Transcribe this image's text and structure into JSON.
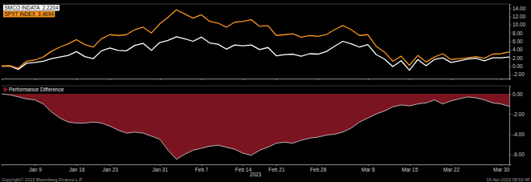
{
  "chart_data": [
    {
      "type": "line",
      "categories": [
        null,
        null,
        null,
        null,
        "Jan 9",
        null,
        null,
        null,
        null,
        "Jan 16",
        null,
        null,
        null,
        "Jan 23",
        null,
        null,
        null,
        null,
        null,
        "Jan 31",
        null,
        null,
        null,
        null,
        "Feb 7",
        null,
        null,
        null,
        null,
        "Feb 14",
        null,
        null,
        null,
        "Feb 21",
        null,
        null,
        null,
        null,
        "Feb 28",
        null,
        null,
        null,
        null,
        null,
        "Mar 8",
        null,
        null,
        null,
        null,
        "Mar 15",
        null,
        null,
        null,
        null,
        "Mar 22",
        null,
        null,
        null,
        null,
        null,
        "Mar 30",
        null
      ],
      "series": [
        {
          "name": "SMCO INDATA",
          "legend_value": 2.2204,
          "color": "#ffffff",
          "values": [
            0,
            0,
            -0.8,
            0.7,
            0.9,
            1.2,
            1.8,
            2.2,
            2.6,
            3.5,
            2.3,
            1.8,
            3.7,
            4.4,
            3.8,
            3.7,
            5.0,
            5.5,
            3.8,
            5.7,
            6.2,
            7.1,
            6.6,
            6.0,
            7.0,
            5.6,
            5.3,
            4.1,
            5.1,
            4.9,
            5.1,
            4.0,
            4.5,
            2.5,
            2.8,
            2.9,
            2.4,
            3.0,
            2.9,
            3.5,
            4.8,
            6.0,
            5.4,
            4.6,
            5.2,
            2.8,
            1.7,
            -0.1,
            1.3,
            -1.0,
            1.6,
            0.1,
            1.6,
            2.0,
            0.9,
            1.3,
            1.7,
            1.9,
            1.3,
            2.0,
            2.0,
            2.22
          ]
        },
        {
          "name": "SPXT INDEX",
          "legend_value": 3.4694,
          "color": "#f7931e",
          "values": [
            0,
            0.1,
            -0.5,
            1.2,
            1.5,
            2.2,
            3.6,
            4.6,
            5.4,
            6.4,
            5.2,
            4.6,
            6.6,
            7.6,
            7.4,
            7.6,
            8.8,
            9.4,
            8.0,
            10.2,
            11.8,
            13.6,
            12.6,
            11.6,
            12.4,
            10.8,
            10.4,
            9.4,
            10.6,
            10.8,
            11.2,
            9.6,
            9.8,
            7.4,
            7.6,
            7.8,
            7.0,
            7.4,
            7.2,
            7.6,
            8.8,
            9.8,
            8.8,
            7.4,
            7.6,
            4.8,
            3.4,
            1.2,
            2.4,
            0.2,
            2.6,
            1.0,
            2.2,
            3.0,
            1.6,
            1.8,
            2.0,
            2.3,
            1.9,
            2.9,
            3.0,
            3.47
          ]
        }
      ],
      "ylim": [
        -3,
        15
      ],
      "yticks": [
        {
          "value": -2,
          "label": "-2.00"
        },
        {
          "value": 0,
          "label": "0.00"
        },
        {
          "value": 2,
          "label": "2.00"
        },
        {
          "value": 4,
          "label": "4.00"
        },
        {
          "value": 6,
          "label": "6.00"
        },
        {
          "value": 8,
          "label": "8.00"
        },
        {
          "value": 10,
          "label": "10.00"
        },
        {
          "value": 12,
          "label": "12.00"
        },
        {
          "value": 14,
          "label": "14.00"
        }
      ],
      "tick_labels": "y",
      "legend": "top-left"
    },
    {
      "type": "area",
      "x_label": "2023",
      "annotations": [
        "Copyright© 2023 Bloomberg Finance L.P.",
        "03-Apr-2023 08:53:48"
      ],
      "categories": [
        null,
        null,
        null,
        null,
        "Jan 9",
        null,
        null,
        null,
        null,
        "Jan 16",
        null,
        null,
        null,
        "Jan 23",
        null,
        null,
        null,
        null,
        null,
        "Jan 31",
        null,
        null,
        null,
        null,
        "Feb 7",
        null,
        null,
        null,
        null,
        "Feb 14",
        null,
        null,
        null,
        "Feb 21",
        null,
        null,
        null,
        null,
        "Feb 28",
        null,
        null,
        null,
        null,
        null,
        "Mar 8",
        null,
        null,
        null,
        null,
        "Mar 15",
        null,
        null,
        null,
        null,
        "Mar 22",
        null,
        null,
        null,
        null,
        null,
        "Mar 30",
        null
      ],
      "series": [
        {
          "name": "Performance Difference",
          "color": "#7a1420",
          "values": [
            0,
            -0.1,
            -0.3,
            -0.5,
            -0.6,
            -1.0,
            -1.8,
            -2.4,
            -2.8,
            -2.9,
            -2.9,
            -2.8,
            -2.9,
            -3.2,
            -3.6,
            -3.9,
            -3.8,
            -3.9,
            -4.2,
            -4.5,
            -5.6,
            -6.5,
            -6.0,
            -5.6,
            -5.4,
            -5.2,
            -5.1,
            -5.3,
            -5.5,
            -5.9,
            -6.1,
            -5.6,
            -5.3,
            -4.9,
            -4.8,
            -4.9,
            -4.6,
            -4.4,
            -4.3,
            -4.1,
            -4.0,
            -3.8,
            -3.4,
            -2.8,
            -2.4,
            -2.0,
            -1.7,
            -1.3,
            -1.1,
            -1.2,
            -1.0,
            -0.9,
            -0.6,
            -1.0,
            -0.7,
            -0.5,
            -0.3,
            -0.4,
            -0.6,
            -0.9,
            -1.0,
            -1.25
          ]
        }
      ],
      "ylim": [
        -7,
        0.8
      ],
      "yticks": [
        {
          "value": -6,
          "label": "-6.00"
        },
        {
          "value": -4,
          "label": "-4.00"
        },
        {
          "value": -2,
          "label": "-2.00"
        },
        {
          "value": 0,
          "label": "0.00"
        }
      ],
      "legend": "top-left"
    }
  ]
}
